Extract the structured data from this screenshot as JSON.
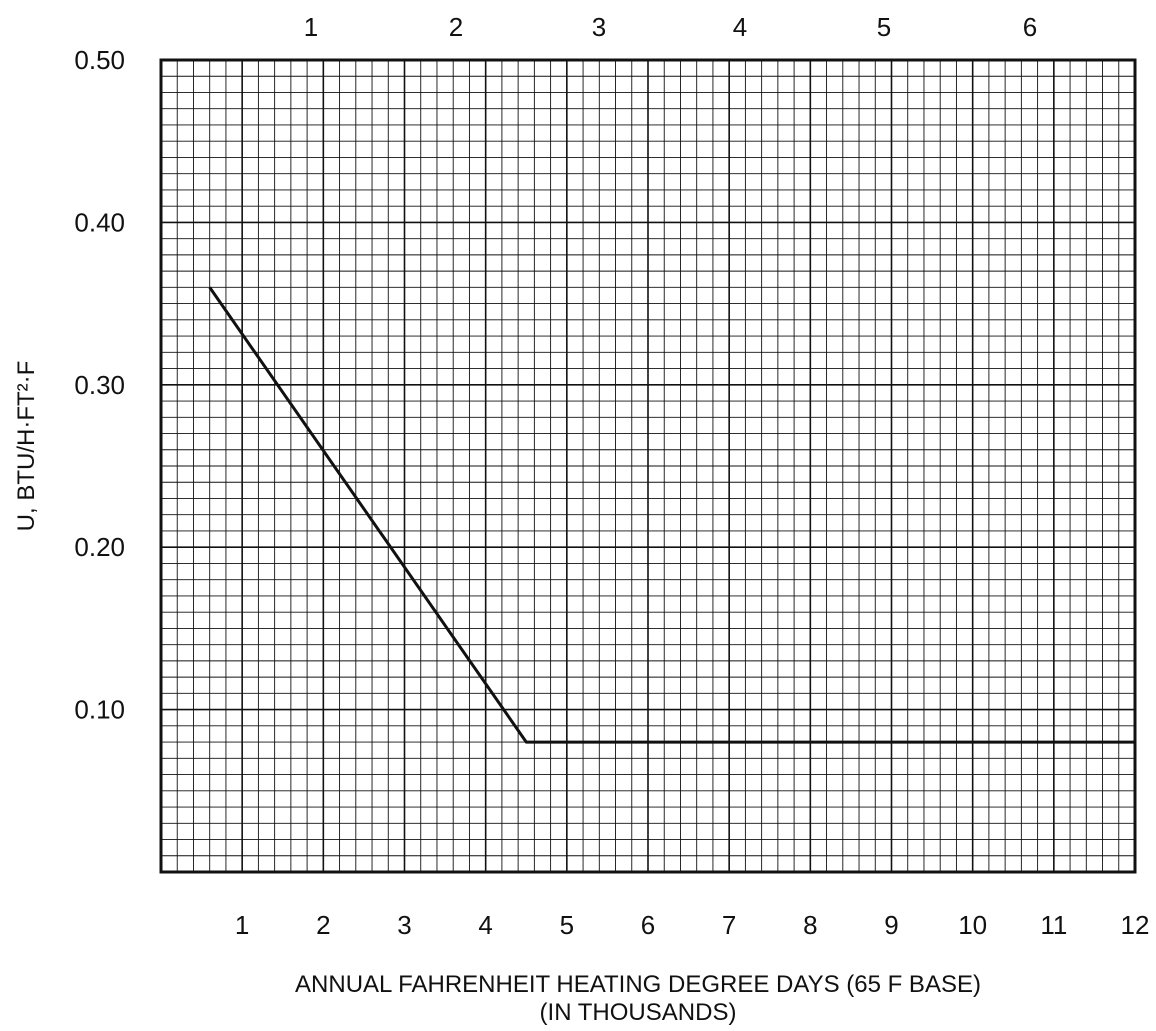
{
  "chart_data": {
    "type": "line",
    "title": "",
    "xlabel_lines": [
      "ANNUAL FAHRENHEIT HEATING DEGREE DAYS (65 F BASE)",
      "(IN THOUSANDS)"
    ],
    "ylabel": "U, BTU/H·FT²·F",
    "xlim": [
      0,
      12
    ],
    "ylim": [
      0,
      0.5
    ],
    "x_ticks": [
      "1",
      "2",
      "3",
      "4",
      "5",
      "6",
      "7",
      "8",
      "9",
      "10",
      "11",
      "12"
    ],
    "y_ticks": [
      "0.10",
      "0.20",
      "0.30",
      "0.40",
      "0.50"
    ],
    "top_axis_ticks": [
      "1",
      "2",
      "3",
      "4",
      "5",
      "6"
    ],
    "grid": true,
    "series": [
      {
        "x": [
          0.6,
          4.5,
          12.0
        ],
        "y": [
          0.36,
          0.08,
          0.08
        ]
      }
    ]
  }
}
